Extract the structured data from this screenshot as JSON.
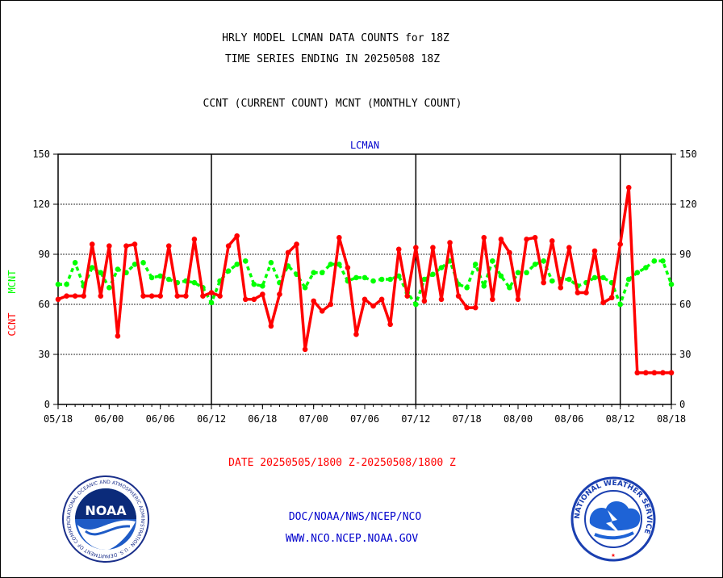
{
  "header": {
    "line1": "HRLY MODEL LCMAN DATA COUNTS for 18Z",
    "line2": "TIME SERIES ENDING IN 20250508 18Z",
    "line3": "CCNT (CURRENT COUNT) MCNT (MONTHLY COUNT)"
  },
  "footer": {
    "date_range": "DATE 20250505/1800 Z-20250508/1800 Z",
    "org": "DOC/NOAA/NWS/NCEP/NCO",
    "url": "WWW.NCO.NCEP.NOAA.GOV",
    "noaa_logo_text": "NOAA",
    "noaa_ring_text": "NATIONAL OCEANIC AND ATMOSPHERIC ADMINISTRATION · U.S. DEPARTMENT OF COMMERCE",
    "nws_ring_text": "NATIONAL WEATHER SERVICE"
  },
  "colors": {
    "ccnt": "#ff0000",
    "mcnt": "#00ff00",
    "title": "#0000cc",
    "date": "#ff0000",
    "axis": "#000000"
  },
  "chart_data": {
    "type": "line",
    "title": "LCMAN",
    "ylabel_ccnt": "CCNT",
    "ylabel_mcnt": "MCNT",
    "ylim": [
      0,
      150
    ],
    "yticks": [
      0,
      30,
      60,
      90,
      120,
      150
    ],
    "xticks": [
      "05/18",
      "06/00",
      "06/06",
      "06/12",
      "06/18",
      "07/00",
      "07/06",
      "07/12",
      "07/18",
      "08/00",
      "08/06",
      "08/12",
      "08/18"
    ],
    "x_range": [
      0,
      72
    ],
    "day_separators": [
      18,
      42,
      66
    ],
    "grid": true,
    "series": [
      {
        "name": "CCNT",
        "values": [
          63,
          65,
          65,
          65,
          96,
          65,
          95,
          41,
          95,
          96,
          65,
          65,
          65,
          95,
          65,
          65,
          99,
          65,
          67,
          65,
          95,
          101,
          63,
          63,
          66,
          47,
          66,
          91,
          96,
          33,
          62,
          56,
          60,
          100,
          82,
          42,
          63,
          59,
          63,
          48,
          93,
          65,
          94,
          62,
          94,
          63,
          97,
          65,
          58,
          58,
          100,
          63,
          99,
          91,
          63,
          99,
          100,
          73,
          98,
          70,
          94,
          67,
          67,
          92,
          61,
          64,
          96,
          130,
          19,
          19,
          19,
          19,
          19
        ]
      },
      {
        "name": "MCNT",
        "values": [
          72,
          72,
          85,
          71,
          82,
          79,
          70,
          81,
          79,
          84,
          85,
          76,
          77,
          75,
          73,
          74,
          73,
          70,
          61,
          74,
          80,
          84,
          86,
          72,
          71,
          85,
          73,
          83,
          78,
          70,
          79,
          79,
          84,
          84,
          74,
          76,
          76,
          74,
          75,
          75,
          77,
          67,
          60,
          75,
          78,
          82,
          86,
          72,
          70,
          84,
          71,
          86,
          77,
          70,
          79,
          79,
          84,
          86,
          74,
          75,
          75,
          71,
          73,
          76,
          76,
          73,
          60,
          75,
          79,
          82,
          86,
          86,
          72
        ]
      }
    ]
  }
}
